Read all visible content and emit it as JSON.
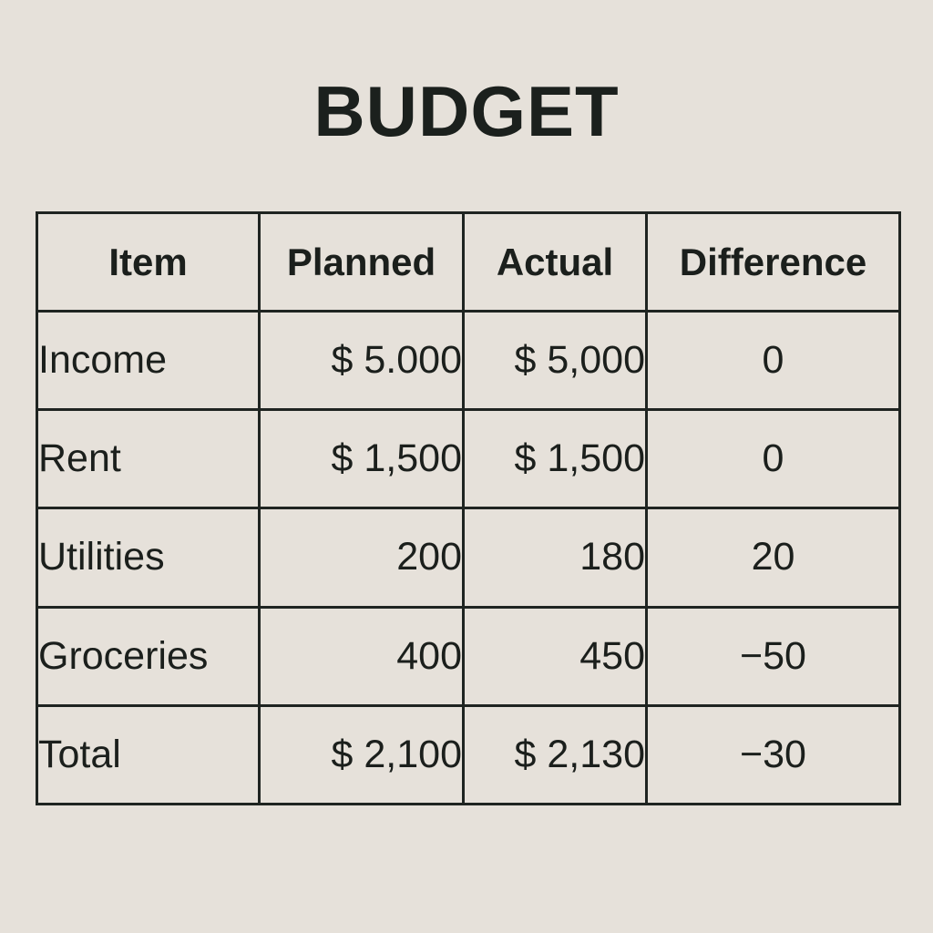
{
  "title": "BUDGET",
  "table": {
    "headers": [
      "Item",
      "Planned",
      "Actual",
      "Difference"
    ],
    "rows": [
      {
        "item": "Income",
        "planned": "$ 5.000",
        "actual": "$ 5,000",
        "difference": "0"
      },
      {
        "item": "Rent",
        "planned": "$ 1,500",
        "actual": "$ 1,500",
        "difference": "0"
      },
      {
        "item": "Utilities",
        "planned": "200",
        "actual": "180",
        "difference": "20"
      },
      {
        "item": "Groceries",
        "planned": "400",
        "actual": "450",
        "difference": "−50"
      },
      {
        "item": "Total",
        "planned": "$ 2,100",
        "actual": "$ 2,130",
        "difference": "−30"
      }
    ]
  }
}
